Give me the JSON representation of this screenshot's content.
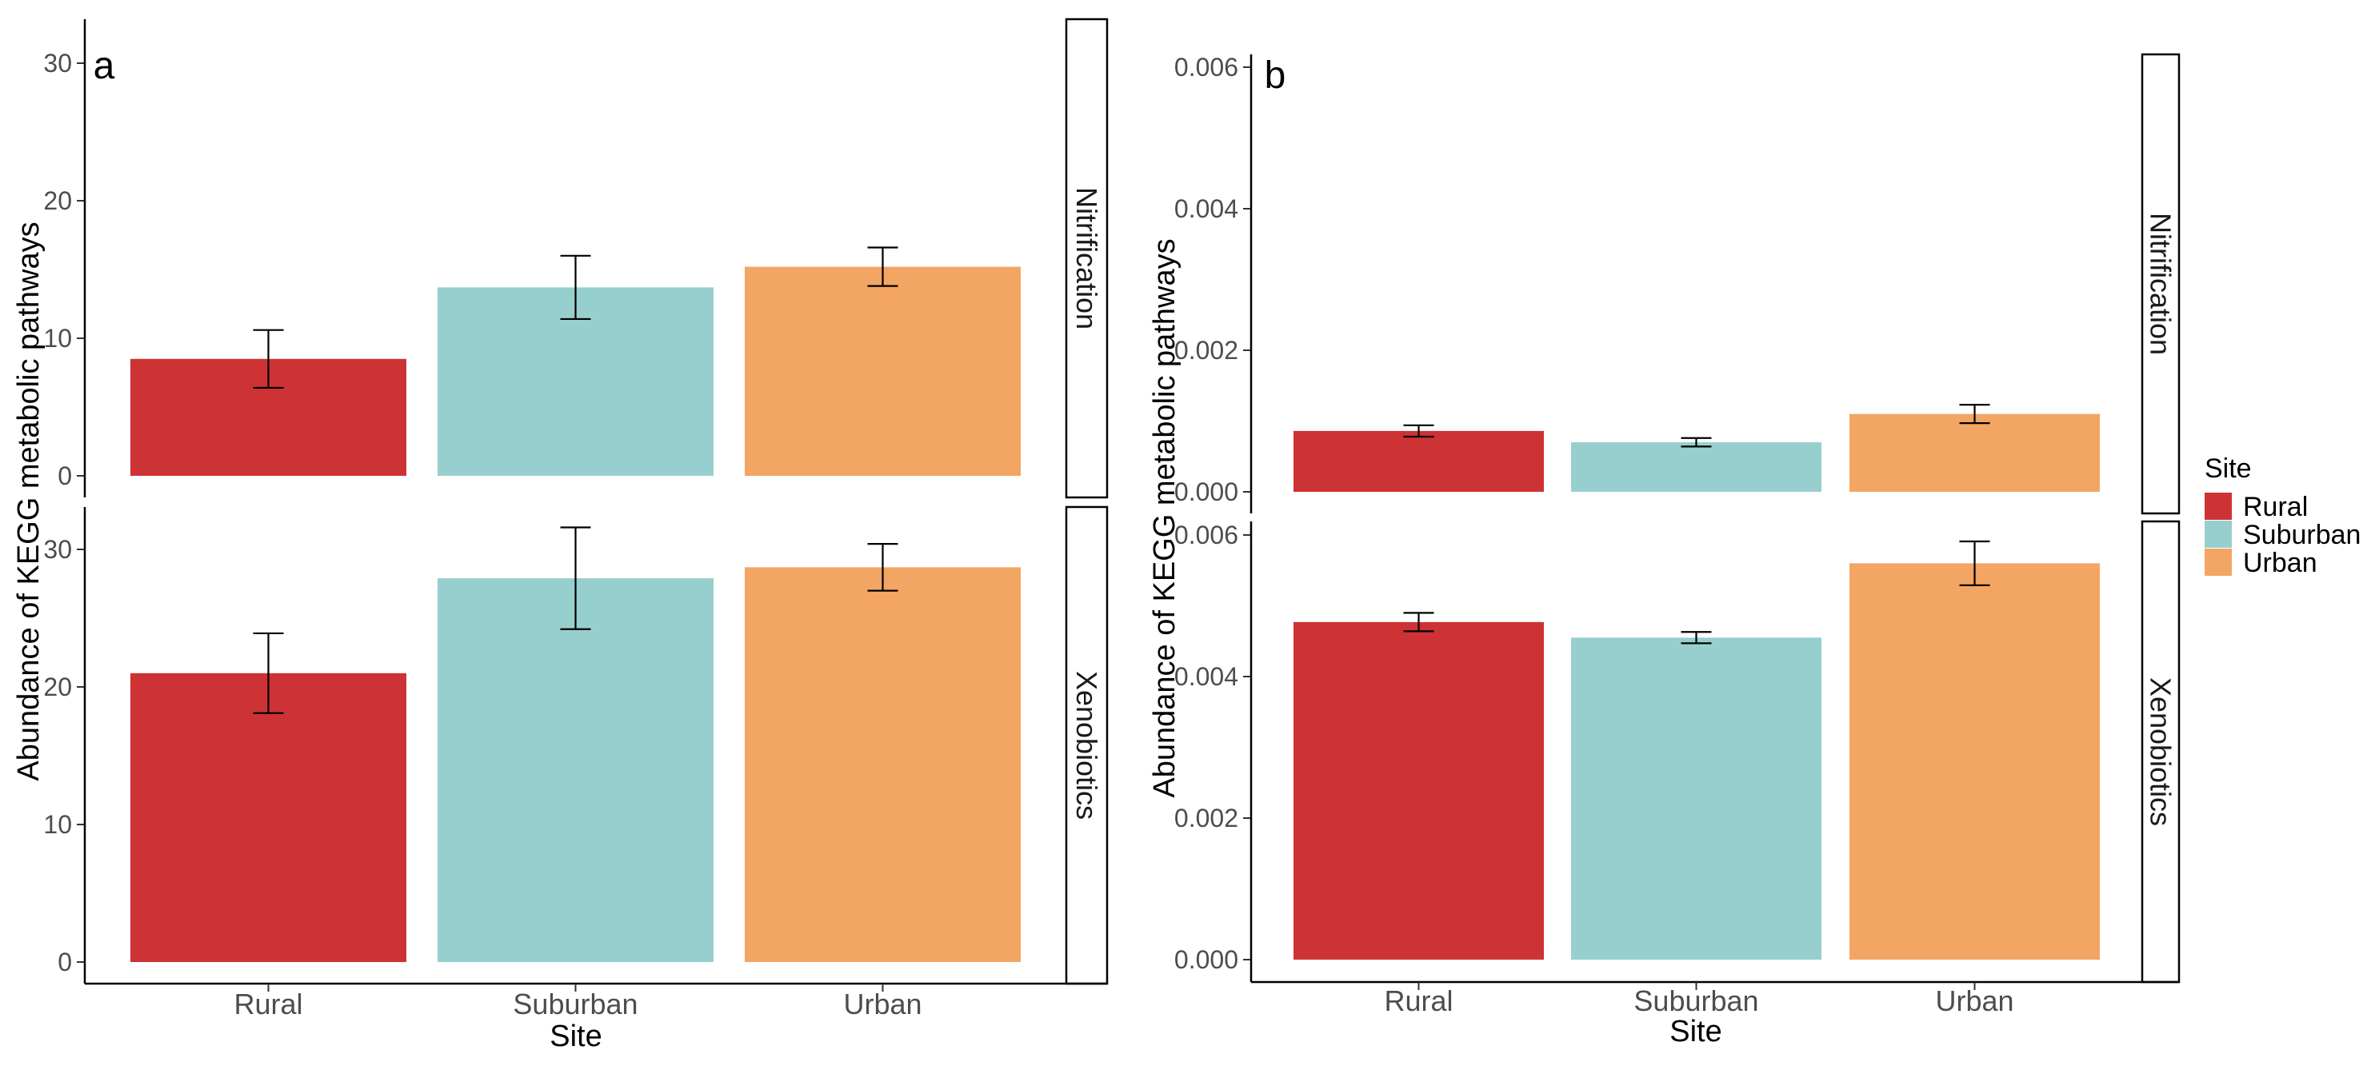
{
  "chart_data": [
    {
      "type": "bar",
      "panel_label": "a",
      "categories": [
        "Rural",
        "Suburban",
        "Urban"
      ],
      "xlabel": "Site",
      "ylabel": "Abundance of KEGG metabolic pathways",
      "ylim": [
        0,
        32
      ],
      "yticks": [
        "0",
        "10",
        "20",
        "30"
      ],
      "ytick_values": [
        0,
        10,
        20,
        30
      ],
      "facets": [
        {
          "label": "Nitrification",
          "values": [
            8.5,
            13.7,
            15.2
          ],
          "errors": [
            2.1,
            2.3,
            1.4
          ]
        },
        {
          "label": "Xenobiotics",
          "values": [
            21.0,
            27.9,
            28.7
          ],
          "errors": [
            2.9,
            3.7,
            1.7
          ]
        }
      ]
    },
    {
      "type": "bar",
      "panel_label": "b",
      "categories": [
        "Rural",
        "Suburban",
        "Urban"
      ],
      "xlabel": "Site",
      "ylabel": "Abundance of KEGG metabolic pathways",
      "ylim": [
        0,
        0.0062
      ],
      "yticks": [
        "0.000",
        "0.002",
        "0.004",
        "0.006"
      ],
      "ytick_values": [
        0,
        0.002,
        0.004,
        0.006
      ],
      "facets": [
        {
          "label": "Nitrification",
          "values": [
            0.00086,
            0.0007,
            0.0011
          ],
          "errors": [
            8e-05,
            6e-05,
            0.00013
          ]
        },
        {
          "label": "Xenobiotics",
          "values": [
            0.00477,
            0.00455,
            0.0056
          ],
          "errors": [
            0.00013,
            8e-05,
            0.00031
          ]
        }
      ]
    }
  ],
  "legend": {
    "title": "Site",
    "items": [
      {
        "label": "Rural",
        "color": "#CD3234"
      },
      {
        "label": "Suburban",
        "color": "#97CFCE"
      },
      {
        "label": "Urban",
        "color": "#F3A563"
      }
    ]
  }
}
